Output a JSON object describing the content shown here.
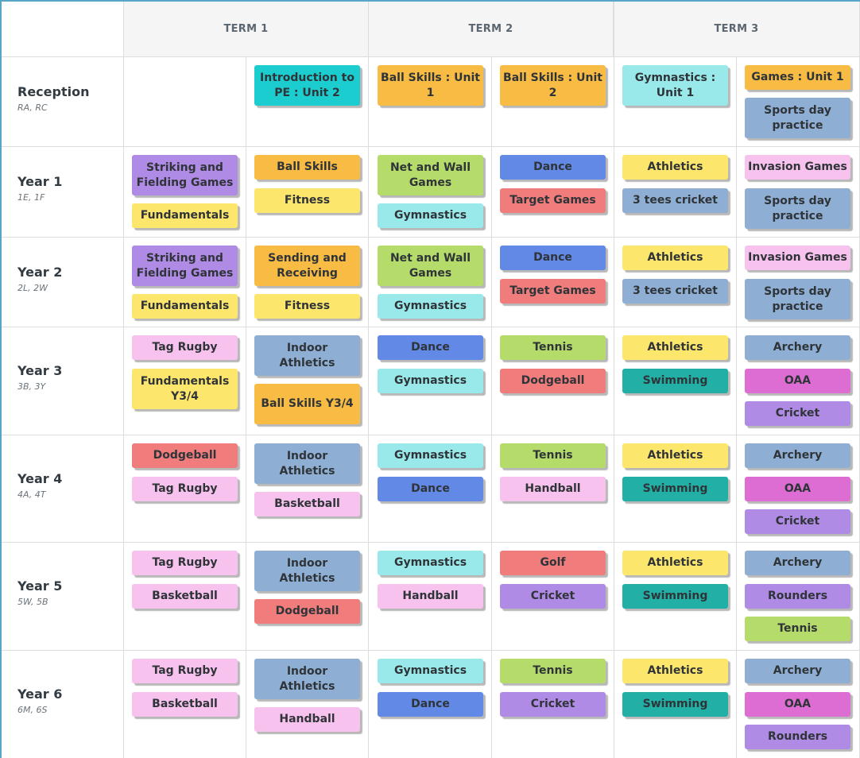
{
  "terms": [
    "TERM 1",
    "TERM 2",
    "TERM 3"
  ],
  "colors": {
    "teal": "#1ccdd0",
    "orange": "#f8bb44",
    "aqua": "#9ae9ea",
    "purple": "#b08be6",
    "yellow": "#fde66c",
    "green": "#b5db6a",
    "blue": "#6389e6",
    "salmon": "#f07c7c",
    "steel": "#8eaed3",
    "pink": "#f8c2ee",
    "darkteal": "#22b0a6",
    "magenta": "#de6dd3"
  },
  "rows": [
    {
      "title": "Reception",
      "classes": "RA, RC",
      "cols": [
        [],
        [
          {
            "text": "Introduction to PE : Unit 2",
            "color": "teal"
          }
        ],
        [
          {
            "text": "Ball Skills : Unit 1",
            "color": "orange"
          }
        ],
        [
          {
            "text": "Ball Skills : Unit 2",
            "color": "orange"
          }
        ],
        [
          {
            "text": "Gymnastics : Unit 1",
            "color": "aqua"
          }
        ],
        [
          {
            "text": "Games : Unit 1",
            "color": "orange"
          },
          {
            "text": "Sports day practice",
            "color": "steel"
          }
        ]
      ]
    },
    {
      "title": "Year 1",
      "classes": "1E, 1F",
      "cols": [
        [
          {
            "text": "Striking and Fielding Games",
            "color": "purple"
          },
          {
            "text": "Fundamentals",
            "color": "yellow"
          }
        ],
        [
          {
            "text": "Ball Skills",
            "color": "orange"
          },
          {
            "text": "Fitness",
            "color": "yellow"
          }
        ],
        [
          {
            "text": "Net and Wall Games",
            "color": "green"
          },
          {
            "text": "Gymnastics",
            "color": "aqua"
          }
        ],
        [
          {
            "text": "Dance",
            "color": "blue"
          },
          {
            "text": "Target Games",
            "color": "salmon"
          }
        ],
        [
          {
            "text": "Athletics",
            "color": "yellow"
          },
          {
            "text": "3 tees cricket",
            "color": "steel"
          }
        ],
        [
          {
            "text": "Invasion Games",
            "color": "pink"
          },
          {
            "text": "Sports day practice",
            "color": "steel"
          }
        ]
      ]
    },
    {
      "title": "Year 2",
      "classes": "2L, 2W",
      "cols": [
        [
          {
            "text": "Striking and Fielding Games",
            "color": "purple"
          },
          {
            "text": "Fundamentals",
            "color": "yellow"
          }
        ],
        [
          {
            "text": "Sending and Receiving",
            "color": "orange"
          },
          {
            "text": "Fitness",
            "color": "yellow"
          }
        ],
        [
          {
            "text": "Net and Wall Games",
            "color": "green"
          },
          {
            "text": "Gymnastics",
            "color": "aqua"
          }
        ],
        [
          {
            "text": "Dance",
            "color": "blue"
          },
          {
            "text": "Target Games",
            "color": "salmon"
          }
        ],
        [
          {
            "text": "Athletics",
            "color": "yellow"
          },
          {
            "text": "3 tees cricket",
            "color": "steel"
          }
        ],
        [
          {
            "text": "Invasion Games",
            "color": "pink"
          },
          {
            "text": "Sports day practice",
            "color": "steel"
          }
        ]
      ]
    },
    {
      "title": "Year 3",
      "classes": "3B, 3Y",
      "cols": [
        [
          {
            "text": "Tag Rugby",
            "color": "pink"
          },
          {
            "text": "Fundamentals Y3/4",
            "color": "yellow"
          }
        ],
        [
          {
            "text": "Indoor Athletics",
            "color": "steel"
          },
          {
            "text": "Ball Skills Y3/4",
            "color": "orange"
          }
        ],
        [
          {
            "text": "Dance",
            "color": "blue"
          },
          {
            "text": "Gymnastics",
            "color": "aqua"
          }
        ],
        [
          {
            "text": "Tennis",
            "color": "green"
          },
          {
            "text": "Dodgeball",
            "color": "salmon"
          }
        ],
        [
          {
            "text": "Athletics",
            "color": "yellow"
          },
          {
            "text": "Swimming",
            "color": "darkteal"
          }
        ],
        [
          {
            "text": "Archery",
            "color": "steel"
          },
          {
            "text": "OAA",
            "color": "magenta"
          },
          {
            "text": "Cricket",
            "color": "purple"
          }
        ]
      ]
    },
    {
      "title": "Year 4",
      "classes": "4A, 4T",
      "cols": [
        [
          {
            "text": "Dodgeball",
            "color": "salmon"
          },
          {
            "text": "Tag Rugby",
            "color": "pink"
          }
        ],
        [
          {
            "text": "Indoor Athletics",
            "color": "steel"
          },
          {
            "text": "Basketball",
            "color": "pink"
          }
        ],
        [
          {
            "text": "Gymnastics",
            "color": "aqua"
          },
          {
            "text": "Dance",
            "color": "blue"
          }
        ],
        [
          {
            "text": "Tennis",
            "color": "green"
          },
          {
            "text": "Handball",
            "color": "pink"
          }
        ],
        [
          {
            "text": "Athletics",
            "color": "yellow"
          },
          {
            "text": "Swimming",
            "color": "darkteal"
          }
        ],
        [
          {
            "text": "Archery",
            "color": "steel"
          },
          {
            "text": "OAA",
            "color": "magenta"
          },
          {
            "text": "Cricket",
            "color": "purple"
          }
        ]
      ]
    },
    {
      "title": "Year 5",
      "classes": "5W, 5B",
      "cols": [
        [
          {
            "text": "Tag Rugby",
            "color": "pink"
          },
          {
            "text": "Basketball",
            "color": "pink"
          }
        ],
        [
          {
            "text": "Indoor Athletics",
            "color": "steel"
          },
          {
            "text": "Dodgeball",
            "color": "salmon"
          }
        ],
        [
          {
            "text": "Gymnastics",
            "color": "aqua"
          },
          {
            "text": "Handball",
            "color": "pink"
          }
        ],
        [
          {
            "text": "Golf",
            "color": "salmon"
          },
          {
            "text": "Cricket",
            "color": "purple"
          }
        ],
        [
          {
            "text": "Athletics",
            "color": "yellow"
          },
          {
            "text": "Swimming",
            "color": "darkteal"
          }
        ],
        [
          {
            "text": "Archery",
            "color": "steel"
          },
          {
            "text": "Rounders",
            "color": "purple"
          },
          {
            "text": "Tennis",
            "color": "green"
          }
        ]
      ]
    },
    {
      "title": "Year 6",
      "classes": "6M, 6S",
      "cols": [
        [
          {
            "text": "Tag Rugby",
            "color": "pink"
          },
          {
            "text": "Basketball",
            "color": "pink"
          }
        ],
        [
          {
            "text": "Indoor Athletics",
            "color": "steel"
          },
          {
            "text": "Handball",
            "color": "pink"
          }
        ],
        [
          {
            "text": "Gymnastics",
            "color": "aqua"
          },
          {
            "text": "Dance",
            "color": "blue"
          }
        ],
        [
          {
            "text": "Tennis",
            "color": "green"
          },
          {
            "text": "Cricket",
            "color": "purple"
          }
        ],
        [
          {
            "text": "Athletics",
            "color": "yellow"
          },
          {
            "text": "Swimming",
            "color": "darkteal"
          }
        ],
        [
          {
            "text": "Archery",
            "color": "steel"
          },
          {
            "text": "OAA",
            "color": "magenta"
          },
          {
            "text": "Rounders",
            "color": "purple"
          }
        ]
      ]
    }
  ]
}
